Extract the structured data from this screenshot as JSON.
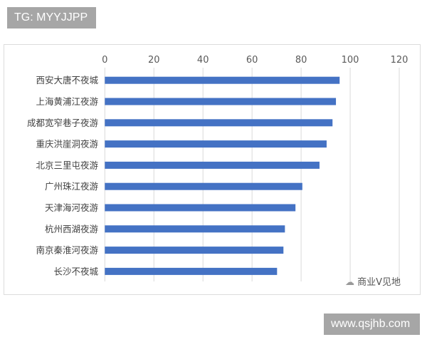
{
  "watermark_top": "TG: MYYJJPP",
  "watermark_bottom": "www.qsjhb.com",
  "source_mark": "商业V见地",
  "chart_data": {
    "type": "bar",
    "orientation": "horizontal",
    "categories": [
      "西安大唐不夜城",
      "上海黄浦江夜游",
      "成都宽窄巷子夜游",
      "重庆洪崖洞夜游",
      "北京三里屯夜游",
      "广州珠江夜游",
      "天津海河夜游",
      "杭州西湖夜游",
      "南京秦淮河夜游",
      "长沙不夜城"
    ],
    "values": [
      95.7,
      94.2,
      92.8,
      90.4,
      87.5,
      80.5,
      77.7,
      73.4,
      72.8,
      70.2
    ],
    "xlim": [
      0,
      120
    ],
    "xticks": [
      "0",
      "20",
      "40",
      "60",
      "80",
      "100",
      "120"
    ],
    "x_axis_position": "top",
    "grid": true,
    "bar_color": "#4472c4",
    "title": "",
    "xlabel": "",
    "ylabel": ""
  }
}
